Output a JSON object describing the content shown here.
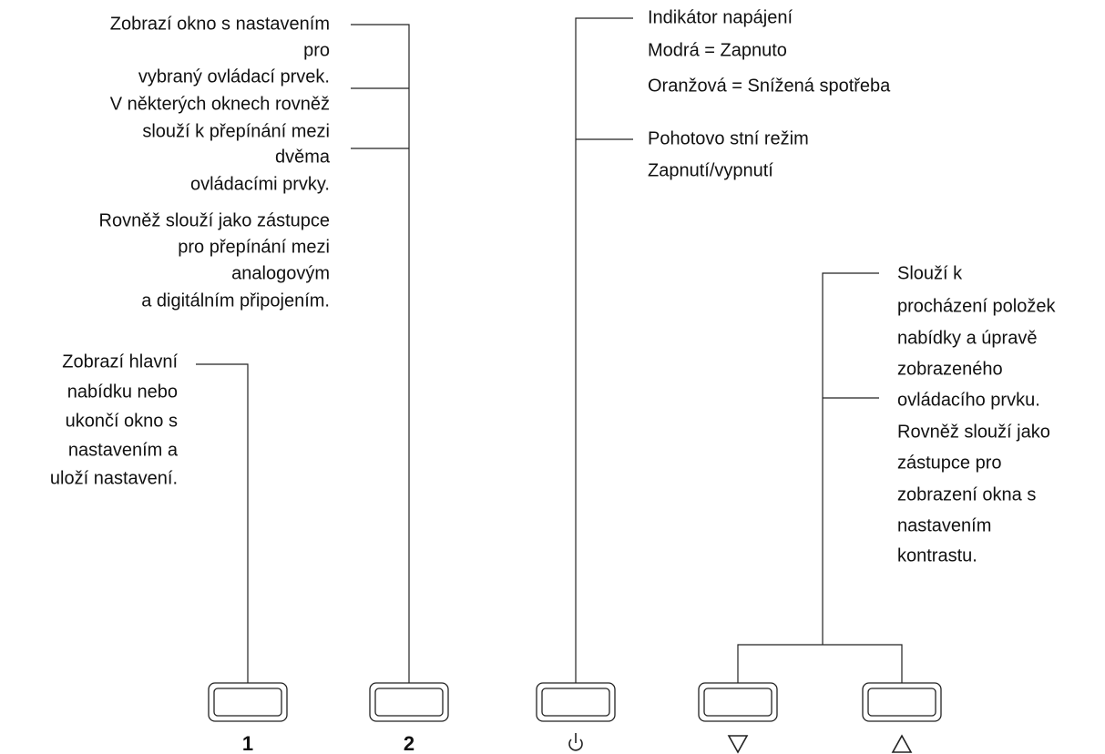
{
  "callouts": [
    {
      "lines": [
        "Zobrazí okno s nastavením",
        "pro",
        "vybraný ovládací prvek.",
        "V některých oknech rovněž",
        "slouží k přepínání mezi",
        "dvěma",
        "ovládacími prvky.",
        "Rovněž slouží jako zástupce",
        "pro přepínání mezi",
        "analogovým",
        "a digitálním připojením."
      ]
    },
    {
      "lines": [
        "Zobrazí hlavní",
        "nabídku nebo",
        "ukončí okno s",
        "nastavením a",
        "uloží nastavení."
      ]
    },
    {
      "lines": [
        "Indikátor napájení",
        "Modrá = Zapnuto",
        "Oranžová = Snížená spotřeba",
        "Pohotovo stní režim",
        "Zapnutí/vypnutí"
      ]
    },
    {
      "lines": [
        "Slouží k",
        "procházení položek",
        "nabídky a úpravě",
        "zobrazeného",
        "ovládacího prvku.",
        "Rovněž slouží jako",
        "zástupce pro",
        "zobrazení okna s",
        "nastavením",
        "kontrastu."
      ]
    }
  ],
  "buttons": [
    "1",
    "2"
  ]
}
